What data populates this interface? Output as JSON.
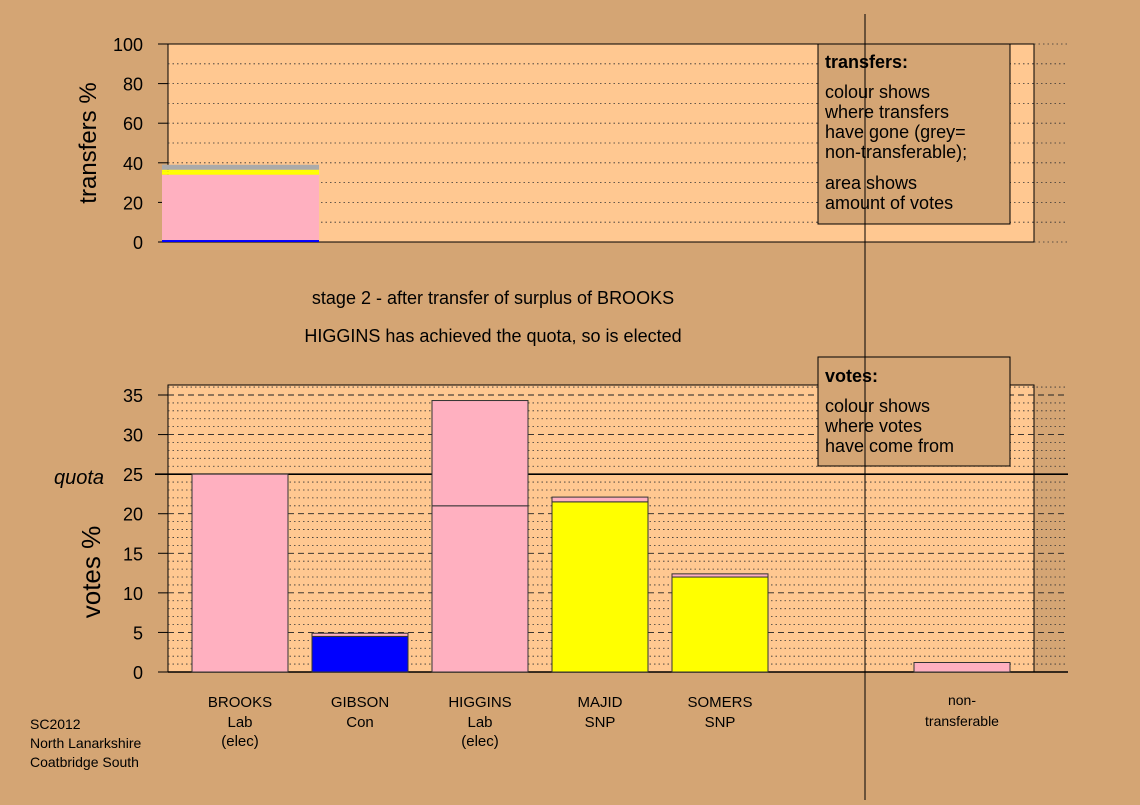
{
  "colors": {
    "background": "#d4a574",
    "panel": "#ffc891",
    "legend_box": "#d4a574",
    "lab": "#ffb0c0",
    "con": "#0000ff",
    "snp": "#ffff00",
    "nontransferable": "#aaaaaa"
  },
  "messages": {
    "stage": "stage 2 - after transfer of surplus of BROOKS",
    "status": "HIGGINS has achieved the quota, so is elected"
  },
  "footer": {
    "line1": "SC2012",
    "line2": "North Lanarkshire",
    "line3": "Coatbridge South"
  },
  "chart_data": [
    {
      "type": "bar",
      "name": "transfers",
      "ylabel": "transfers %",
      "ylim": [
        0,
        100
      ],
      "yticks": [
        0,
        20,
        40,
        60,
        80,
        100
      ],
      "legend": {
        "title": "transfers:",
        "lines": [
          "colour shows",
          "where transfers",
          "have gone (grey=",
          "non-transferable);"
        ],
        "lines2": [
          "area shows",
          "amount of votes"
        ]
      },
      "bar": {
        "source": "BROOKS",
        "segments": [
          {
            "to": "GIBSON",
            "color": "con",
            "value": 1.0
          },
          {
            "to": "HIGGINS",
            "color": "lab",
            "value": 33.0
          },
          {
            "to": "MAJID",
            "color": "snp",
            "value": 1.5
          },
          {
            "to": "SOMERS",
            "color": "snp",
            "value": 1.0
          },
          {
            "to": "non-transferable",
            "color": "nontransferable",
            "value": 2.5
          }
        ]
      }
    },
    {
      "type": "bar",
      "name": "votes",
      "ylabel": "votes %",
      "ylim": [
        0,
        36
      ],
      "yticks": [
        0,
        5,
        10,
        15,
        20,
        25,
        30,
        35
      ],
      "quota": 25,
      "quota_label": "quota",
      "legend": {
        "title": "votes:",
        "lines": [
          "colour shows",
          "where votes",
          "have come from"
        ]
      },
      "categories": [
        {
          "name": "BROOKS",
          "party": "Lab",
          "note": "(elec)",
          "segments": [
            {
              "color": "lab",
              "value": 25.0
            }
          ]
        },
        {
          "name": "GIBSON",
          "party": "Con",
          "note": "",
          "segments": [
            {
              "color": "con",
              "value": 4.5
            },
            {
              "color": "lab",
              "value": 0.4
            }
          ]
        },
        {
          "name": "HIGGINS",
          "party": "Lab",
          "note": "(elec)",
          "segments": [
            {
              "color": "lab",
              "value": 21.0
            },
            {
              "color": "lab",
              "value": 13.3
            }
          ]
        },
        {
          "name": "MAJID",
          "party": "SNP",
          "note": "",
          "segments": [
            {
              "color": "snp",
              "value": 21.5
            },
            {
              "color": "lab",
              "value": 0.6
            }
          ]
        },
        {
          "name": "SOMERS",
          "party": "SNP",
          "note": "",
          "segments": [
            {
              "color": "snp",
              "value": 12.0
            },
            {
              "color": "lab",
              "value": 0.4
            }
          ]
        }
      ],
      "nontransferable": {
        "label1": "non-",
        "label2": "transferable",
        "value": 1.2,
        "color": "lab"
      }
    }
  ]
}
